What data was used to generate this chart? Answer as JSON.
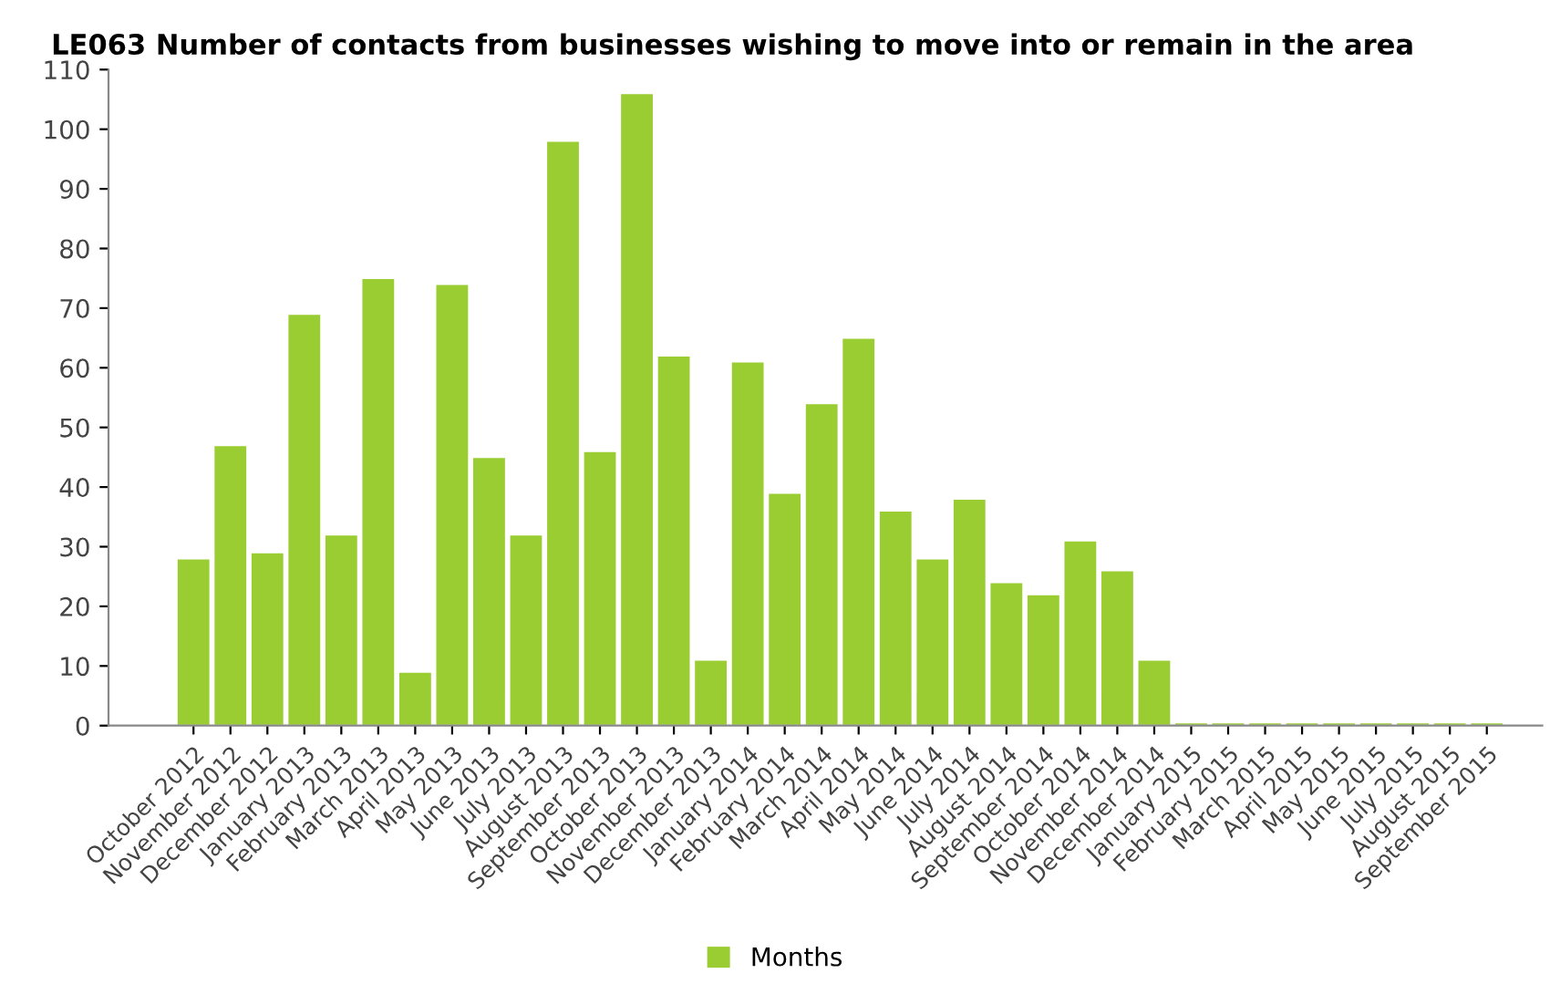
{
  "chart_data": {
    "type": "bar",
    "title": "LE063 Number of contacts from businesses wishing to move into or remain in the area",
    "categories": [
      "October 2012",
      "November 2012",
      "December 2012",
      "January 2013",
      "February 2013",
      "March 2013",
      "April 2013",
      "May 2013",
      "June 2013",
      "July 2013",
      "August 2013",
      "September 2013",
      "October 2013",
      "November 2013",
      "December 2013",
      "January 2014",
      "February 2014",
      "March 2014",
      "April 2014",
      "May 2014",
      "June 2014",
      "July 2014",
      "August 2014",
      "September 2014",
      "October 2014",
      "November 2014",
      "December 2014",
      "January 2015",
      "February 2015",
      "March 2015",
      "April 2015",
      "May 2015",
      "June 2015",
      "July 2015",
      "August 2015",
      "September 2015"
    ],
    "series": [
      {
        "name": "Months",
        "color": "#9acd32",
        "values": [
          28,
          47,
          29,
          69,
          32,
          75,
          9,
          74,
          45,
          32,
          98,
          46,
          106,
          62,
          11,
          61,
          39,
          54,
          65,
          36,
          28,
          38,
          24,
          22,
          31,
          26,
          11,
          0.5,
          0.5,
          0.5,
          0.5,
          0.5,
          0.5,
          0.5,
          0.5,
          0.5
        ]
      }
    ],
    "ylim": [
      0,
      110
    ],
    "yticks": [
      0,
      10,
      20,
      30,
      40,
      50,
      60,
      70,
      80,
      90,
      100,
      110
    ],
    "grid": false,
    "legend": "bottom"
  }
}
